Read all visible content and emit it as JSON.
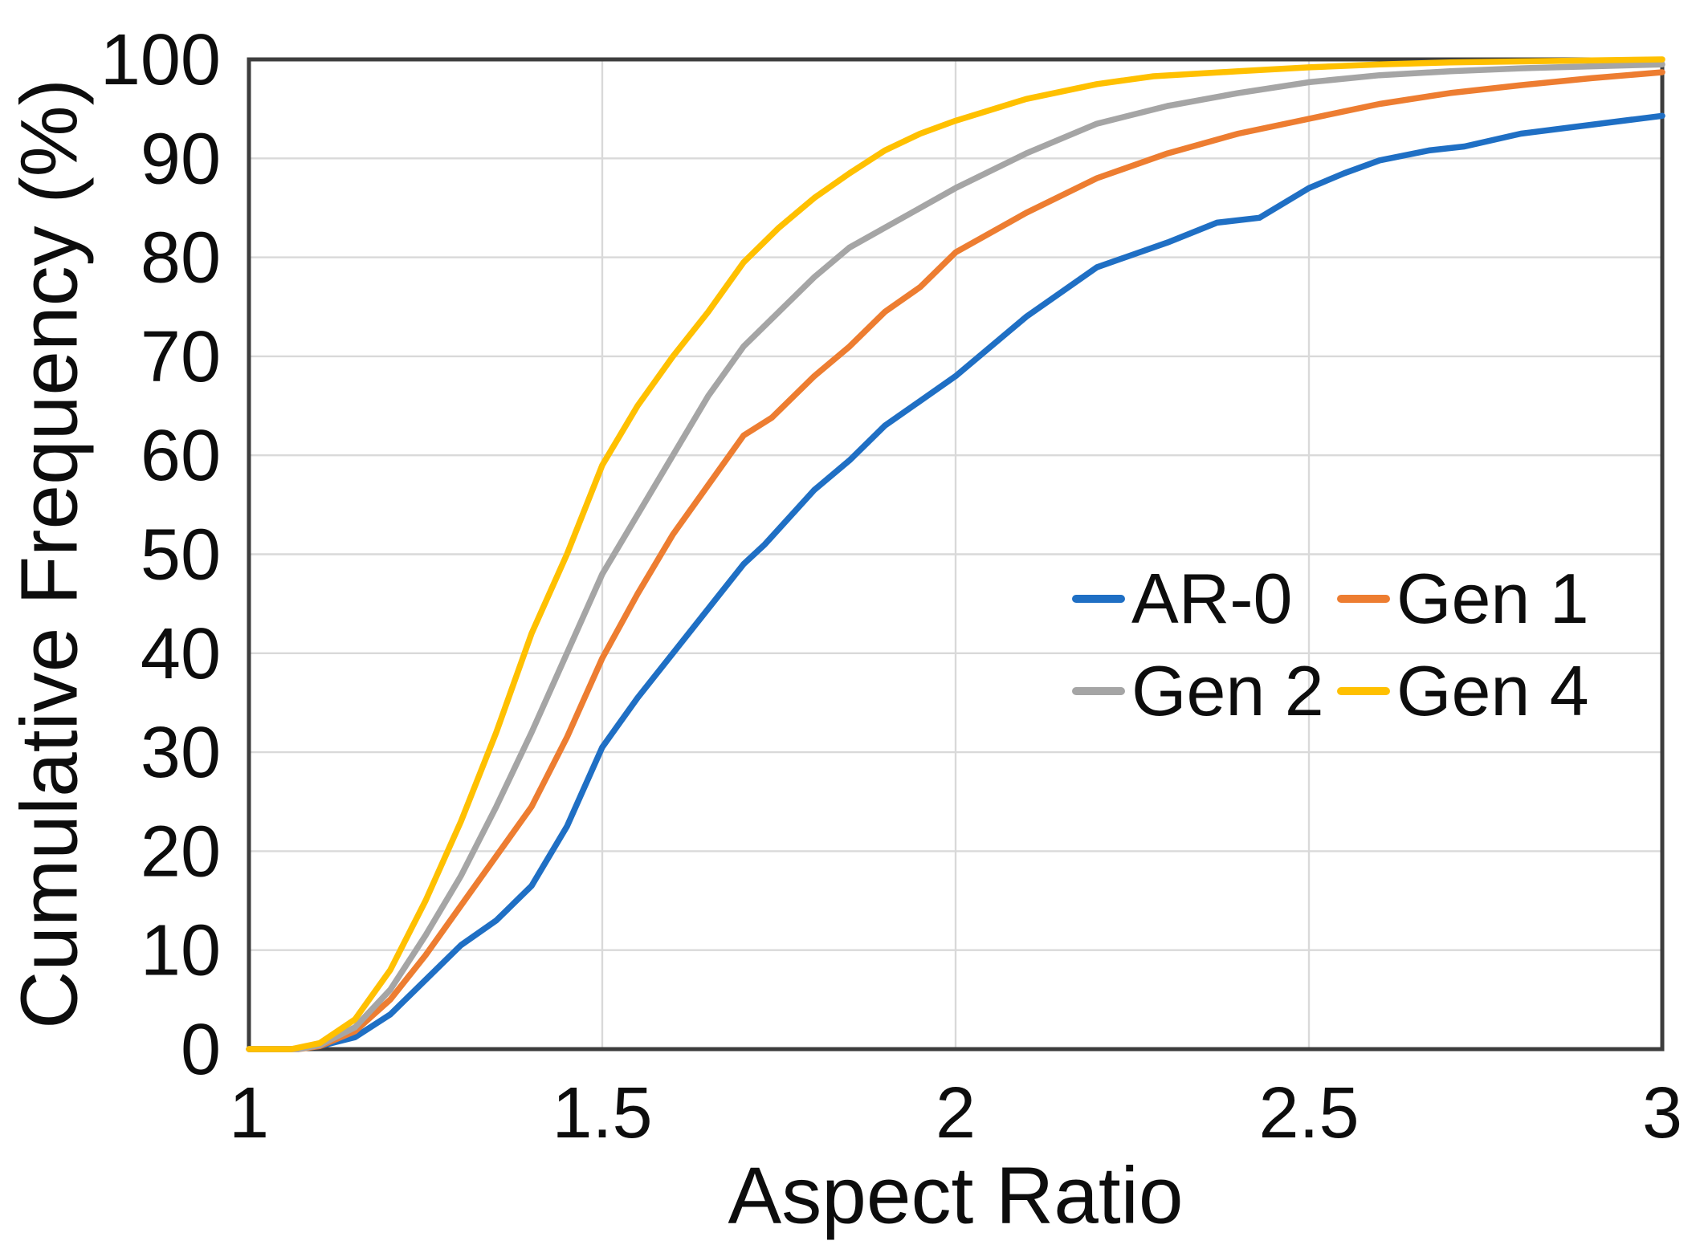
{
  "figure": {
    "background": "#ffffff"
  },
  "chart_data": {
    "type": "line",
    "title": "",
    "xlabel": "Aspect Ratio",
    "ylabel": "Cumulative Frequency (%)",
    "xlim": [
      1,
      3
    ],
    "ylim": [
      0,
      100
    ],
    "x_ticks": [
      1,
      1.5,
      2,
      2.5,
      3
    ],
    "x_tick_labels": [
      "1",
      "1.5",
      "2",
      "2.5",
      "3"
    ],
    "y_ticks": [
      0,
      10,
      20,
      30,
      40,
      50,
      60,
      70,
      80,
      90,
      100
    ],
    "x_gridlines": [
      1.5,
      2,
      2.5
    ],
    "y_gridlines": [
      10,
      20,
      30,
      40,
      50,
      60,
      70,
      80,
      90
    ],
    "grid": true,
    "legend_position": "inside-middle-right",
    "colors": {
      "gridline": "#d9d9d9",
      "axis_frame": "#3d3d3d",
      "text": "#0d0d0d"
    },
    "series": [
      {
        "name": "AR-0",
        "color": "#1F6FC4",
        "points": [
          [
            1.0,
            0
          ],
          [
            1.06,
            0
          ],
          [
            1.1,
            0.3
          ],
          [
            1.15,
            1.2
          ],
          [
            1.2,
            3.5
          ],
          [
            1.25,
            7
          ],
          [
            1.3,
            10.5
          ],
          [
            1.35,
            13
          ],
          [
            1.4,
            16.5
          ],
          [
            1.45,
            22.5
          ],
          [
            1.5,
            30.5
          ],
          [
            1.55,
            35.5
          ],
          [
            1.6,
            40
          ],
          [
            1.65,
            44.5
          ],
          [
            1.7,
            49
          ],
          [
            1.73,
            51
          ],
          [
            1.8,
            56.5
          ],
          [
            1.85,
            59.5
          ],
          [
            1.9,
            63
          ],
          [
            1.95,
            65.5
          ],
          [
            2.0,
            68
          ],
          [
            2.1,
            74
          ],
          [
            2.2,
            79
          ],
          [
            2.3,
            81.5
          ],
          [
            2.37,
            83.5
          ],
          [
            2.43,
            84
          ],
          [
            2.5,
            87
          ],
          [
            2.55,
            88.5
          ],
          [
            2.6,
            89.8
          ],
          [
            2.67,
            90.8
          ],
          [
            2.72,
            91.2
          ],
          [
            2.8,
            92.5
          ],
          [
            2.9,
            93.4
          ],
          [
            3.0,
            94.3
          ]
        ]
      },
      {
        "name": "Gen 1",
        "color": "#ED7D31",
        "points": [
          [
            1.0,
            0
          ],
          [
            1.07,
            0
          ],
          [
            1.1,
            0.3
          ],
          [
            1.15,
            1.8
          ],
          [
            1.2,
            5
          ],
          [
            1.25,
            9.5
          ],
          [
            1.3,
            14.5
          ],
          [
            1.35,
            19.5
          ],
          [
            1.4,
            24.5
          ],
          [
            1.45,
            31.5
          ],
          [
            1.5,
            39.5
          ],
          [
            1.55,
            46
          ],
          [
            1.6,
            52
          ],
          [
            1.65,
            57
          ],
          [
            1.7,
            62
          ],
          [
            1.74,
            63.8
          ],
          [
            1.8,
            68
          ],
          [
            1.85,
            71
          ],
          [
            1.9,
            74.5
          ],
          [
            1.95,
            77
          ],
          [
            2.0,
            80.5
          ],
          [
            2.1,
            84.5
          ],
          [
            2.2,
            88
          ],
          [
            2.3,
            90.5
          ],
          [
            2.4,
            92.5
          ],
          [
            2.5,
            94
          ],
          [
            2.6,
            95.5
          ],
          [
            2.7,
            96.6
          ],
          [
            2.8,
            97.4
          ],
          [
            2.9,
            98.1
          ],
          [
            3.0,
            98.7
          ]
        ]
      },
      {
        "name": "Gen 2",
        "color": "#A5A5A5",
        "points": [
          [
            1.0,
            0
          ],
          [
            1.07,
            0
          ],
          [
            1.1,
            0.4
          ],
          [
            1.15,
            2.2
          ],
          [
            1.2,
            6
          ],
          [
            1.25,
            11.5
          ],
          [
            1.3,
            17.5
          ],
          [
            1.35,
            24.5
          ],
          [
            1.4,
            32
          ],
          [
            1.45,
            40
          ],
          [
            1.5,
            48
          ],
          [
            1.55,
            54
          ],
          [
            1.6,
            60
          ],
          [
            1.65,
            66
          ],
          [
            1.7,
            71
          ],
          [
            1.75,
            74.5
          ],
          [
            1.8,
            78
          ],
          [
            1.85,
            81
          ],
          [
            1.9,
            83
          ],
          [
            1.95,
            85
          ],
          [
            2.0,
            87
          ],
          [
            2.1,
            90.5
          ],
          [
            2.2,
            93.5
          ],
          [
            2.3,
            95.3
          ],
          [
            2.4,
            96.6
          ],
          [
            2.5,
            97.7
          ],
          [
            2.6,
            98.4
          ],
          [
            2.7,
            98.8
          ],
          [
            2.8,
            99.1
          ],
          [
            2.9,
            99.3
          ],
          [
            3.0,
            99.5
          ]
        ]
      },
      {
        "name": "Gen 4",
        "color": "#FFC000",
        "points": [
          [
            1.0,
            0
          ],
          [
            1.06,
            0
          ],
          [
            1.1,
            0.6
          ],
          [
            1.15,
            3
          ],
          [
            1.2,
            8
          ],
          [
            1.25,
            15
          ],
          [
            1.3,
            23
          ],
          [
            1.35,
            32
          ],
          [
            1.4,
            42
          ],
          [
            1.45,
            50
          ],
          [
            1.5,
            59
          ],
          [
            1.55,
            65
          ],
          [
            1.6,
            70
          ],
          [
            1.65,
            74.5
          ],
          [
            1.7,
            79.5
          ],
          [
            1.75,
            83
          ],
          [
            1.8,
            86
          ],
          [
            1.85,
            88.5
          ],
          [
            1.9,
            90.8
          ],
          [
            1.95,
            92.5
          ],
          [
            2.0,
            93.8
          ],
          [
            2.1,
            96
          ],
          [
            2.2,
            97.5
          ],
          [
            2.28,
            98.3
          ],
          [
            2.4,
            98.8
          ],
          [
            2.5,
            99.2
          ],
          [
            2.6,
            99.5
          ],
          [
            2.7,
            99.7
          ],
          [
            2.8,
            99.8
          ],
          [
            2.9,
            99.9
          ],
          [
            3.0,
            100
          ]
        ]
      }
    ]
  }
}
